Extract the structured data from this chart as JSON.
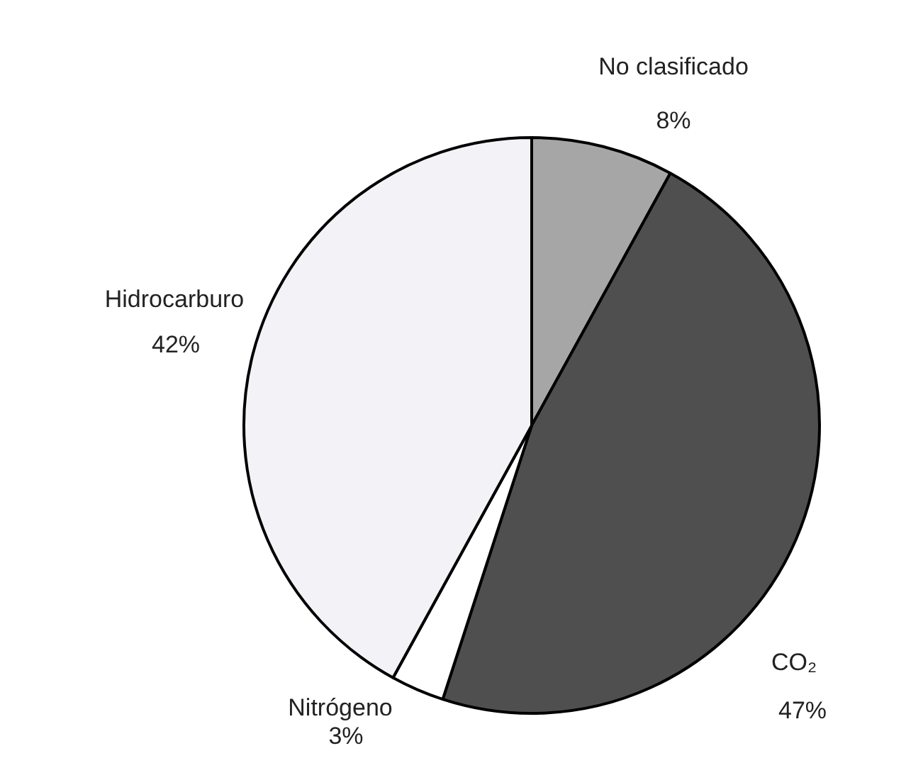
{
  "chart_data": {
    "type": "pie",
    "categories": [
      "No clasificado",
      "CO₂",
      "Nitrógeno",
      "Hidrocarburo"
    ],
    "values": [
      8,
      47,
      3,
      42
    ],
    "value_labels": [
      "8%",
      "47%",
      "3%",
      "42%"
    ],
    "colors": [
      "#a6a6a6",
      "#4f4f4f",
      "#ffffff",
      "#f3f3f7"
    ],
    "legend": false
  }
}
